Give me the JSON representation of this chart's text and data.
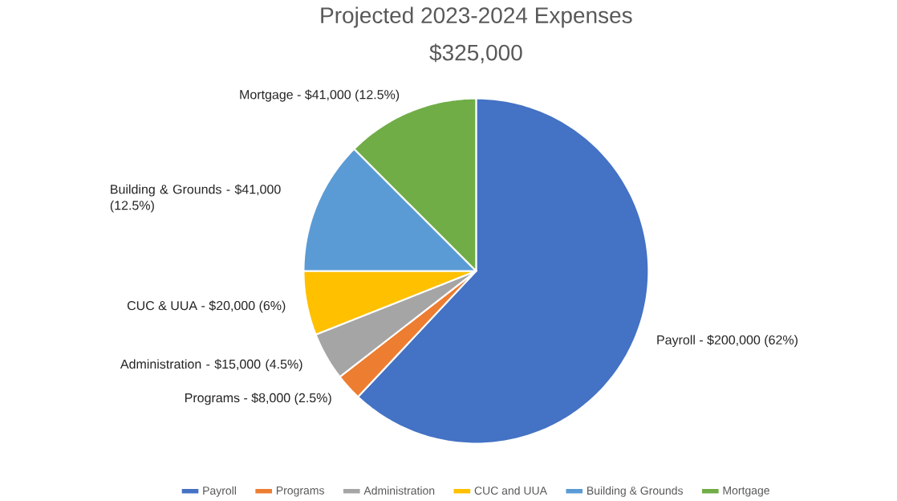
{
  "chart_data": {
    "type": "pie",
    "title": "Projected 2023-2024 Expenses",
    "subtitle": "$325,000",
    "categories": [
      "Payroll",
      "Programs",
      "Administration",
      "CUC and UUA",
      "Building & Grounds",
      "Mortgage"
    ],
    "values": [
      62,
      2.5,
      4.5,
      6,
      12.5,
      12.5
    ],
    "colors": [
      "#4472c4",
      "#ed7d31",
      "#a5a5a5",
      "#ffc000",
      "#5b9bd5",
      "#70ad47"
    ],
    "value_labels": [
      "Payroll - $200,000 (62%)",
      "Programs - $8,000 (2.5%)",
      "Administration - $15,000 (4.5%)",
      "CUC & UUA - $20,000 (6%)",
      "Building & Grounds - $41,000 (12.5%)",
      "Mortgage - $41,000 (12.5%)"
    ],
    "legend": "bottom"
  }
}
